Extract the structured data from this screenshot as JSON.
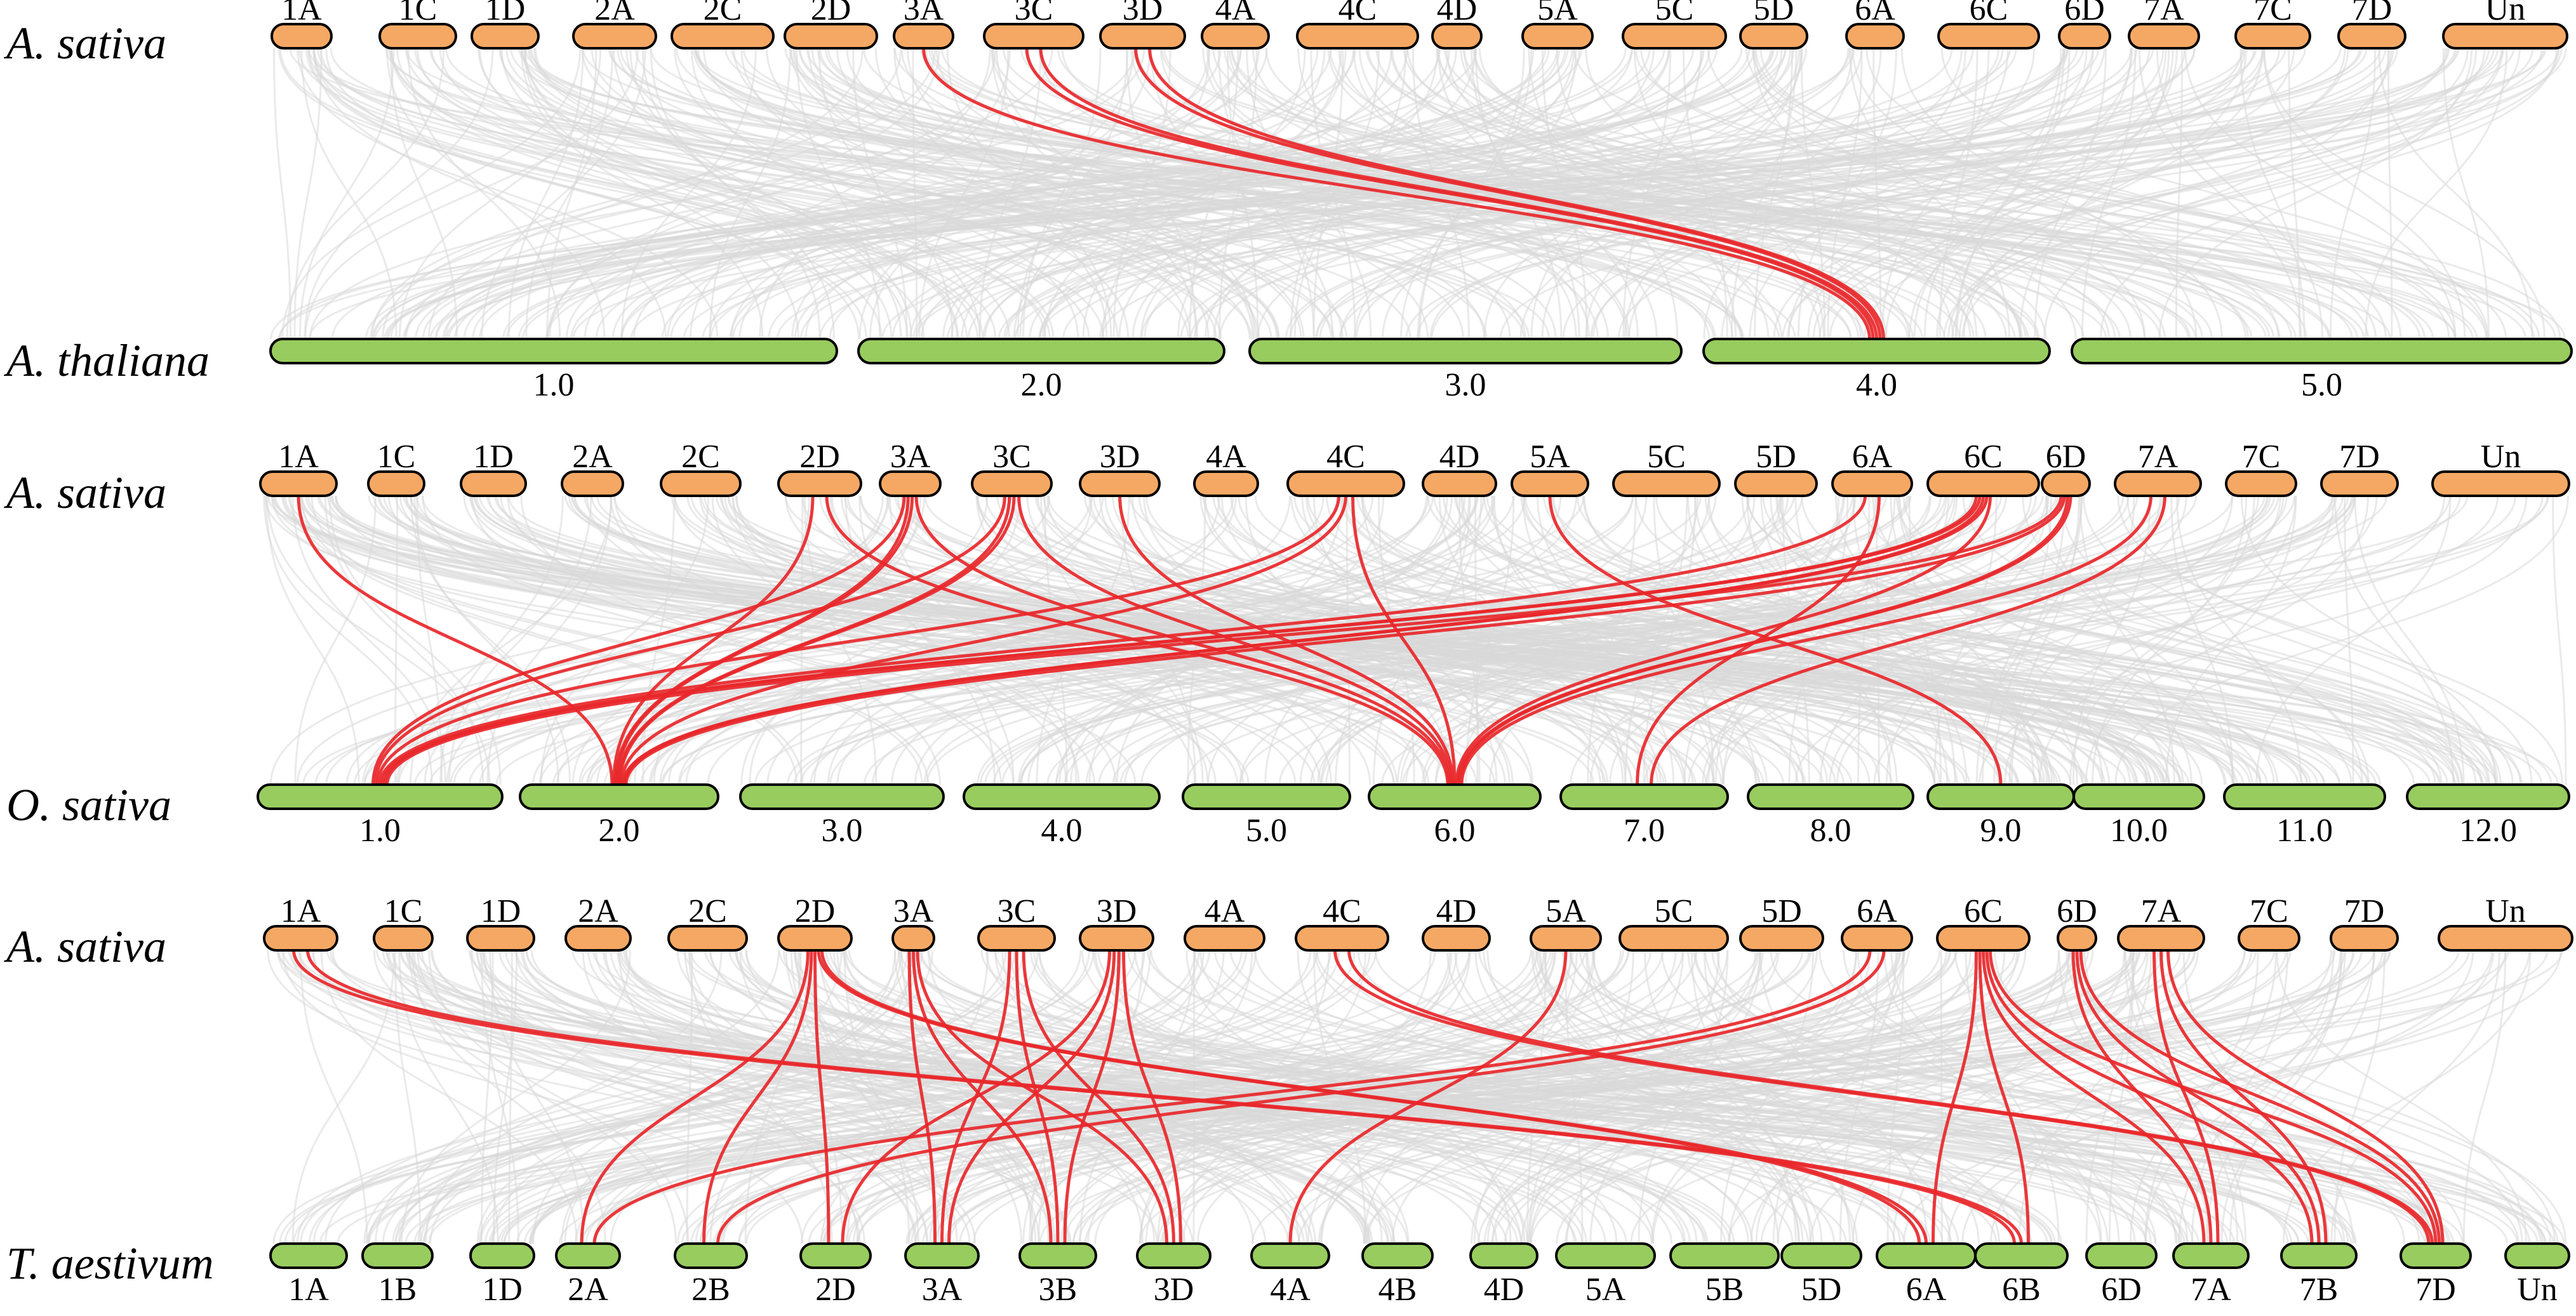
{
  "colors": {
    "top_track": "#f5a864",
    "bottom_track": "#98cc5e",
    "background_links": "#d9d9d9",
    "highlight_links": "#e8272a"
  },
  "panels": [
    {
      "top_species": "A. sativa",
      "bottom_species": "A. thaliana",
      "top_chromosomes": [
        "1A",
        "1C",
        "1D",
        "2A",
        "2C",
        "2D",
        "3A",
        "3C",
        "3D",
        "4A",
        "4C",
        "4D",
        "5A",
        "5C",
        "5D",
        "6A",
        "6C",
        "6D",
        "7A",
        "7C",
        "7D",
        "Un"
      ],
      "bottom_chromosomes": [
        "1.0",
        "2.0",
        "3.0",
        "4.0",
        "5.0"
      ],
      "highlight_links": [
        {
          "from": "3A",
          "to": "4.0"
        },
        {
          "from": "3C",
          "to": "4.0"
        },
        {
          "from": "3C",
          "to": "4.0"
        },
        {
          "from": "3D",
          "to": "4.0"
        },
        {
          "from": "3D",
          "to": "4.0"
        }
      ]
    },
    {
      "top_species": "A. sativa",
      "bottom_species": "O. sativa",
      "top_chromosomes": [
        "1A",
        "1C",
        "1D",
        "2A",
        "2C",
        "2D",
        "3A",
        "3C",
        "3D",
        "4A",
        "4C",
        "4D",
        "5A",
        "5C",
        "5D",
        "6A",
        "6C",
        "6D",
        "7A",
        "7C",
        "7D",
        "Un"
      ],
      "bottom_chromosomes": [
        "1.0",
        "2.0",
        "3.0",
        "4.0",
        "5.0",
        "6.0",
        "7.0",
        "8.0",
        "9.0",
        "10.0",
        "11.0",
        "12.0"
      ],
      "highlight_links": [
        {
          "from": "1A",
          "to": "2.0"
        },
        {
          "from": "2D",
          "to": "2.0"
        },
        {
          "from": "2D",
          "to": "6.0"
        },
        {
          "from": "3A",
          "to": "1.0"
        },
        {
          "from": "3A",
          "to": "2.0"
        },
        {
          "from": "3A",
          "to": "2.0"
        },
        {
          "from": "3A",
          "to": "6.0"
        },
        {
          "from": "3C",
          "to": "1.0"
        },
        {
          "from": "3C",
          "to": "2.0"
        },
        {
          "from": "3C",
          "to": "2.0"
        },
        {
          "from": "3C",
          "to": "6.0"
        },
        {
          "from": "3D",
          "to": "6.0"
        },
        {
          "from": "4C",
          "to": "1.0"
        },
        {
          "from": "4C",
          "to": "2.0"
        },
        {
          "from": "4C",
          "to": "6.0"
        },
        {
          "from": "5A",
          "to": "9.0"
        },
        {
          "from": "6A",
          "to": "1.0"
        },
        {
          "from": "6A",
          "to": "7.0"
        },
        {
          "from": "6C",
          "to": "1.0"
        },
        {
          "from": "6C",
          "to": "1.0"
        },
        {
          "from": "6C",
          "to": "2.0"
        },
        {
          "from": "6C",
          "to": "2.0"
        },
        {
          "from": "6C",
          "to": "6.0"
        },
        {
          "from": "6D",
          "to": "1.0"
        },
        {
          "from": "6D",
          "to": "2.0"
        },
        {
          "from": "6D",
          "to": "6.0"
        },
        {
          "from": "6D",
          "to": "6.0"
        },
        {
          "from": "7A",
          "to": "6.0"
        },
        {
          "from": "7A",
          "to": "7.0"
        }
      ]
    },
    {
      "top_species": "A. sativa",
      "bottom_species": "T. aestivum",
      "top_chromosomes": [
        "1A",
        "1C",
        "1D",
        "2A",
        "2C",
        "2D",
        "3A",
        "3C",
        "3D",
        "4A",
        "4C",
        "4D",
        "5A",
        "5C",
        "5D",
        "6A",
        "6C",
        "6D",
        "7A",
        "7C",
        "7D",
        "Un"
      ],
      "bottom_chromosomes": [
        "1A",
        "1B",
        "1D",
        "2A",
        "2B",
        "2D",
        "3A",
        "3B",
        "3D",
        "4A",
        "4B",
        "4D",
        "5A",
        "5B",
        "5D",
        "6A",
        "6B",
        "6D",
        "7A",
        "7B",
        "7D",
        "Un"
      ],
      "highlight_links": [
        {
          "from": "1A",
          "to": "6B"
        },
        {
          "from": "1A",
          "to": "6B"
        },
        {
          "from": "2D",
          "to": "2A"
        },
        {
          "from": "2D",
          "to": "2B"
        },
        {
          "from": "2D",
          "to": "2D"
        },
        {
          "from": "2D",
          "to": "6A"
        },
        {
          "from": "2D",
          "to": "6A"
        },
        {
          "from": "3A",
          "to": "3A"
        },
        {
          "from": "3A",
          "to": "3B"
        },
        {
          "from": "3A",
          "to": "3D"
        },
        {
          "from": "3C",
          "to": "3A"
        },
        {
          "from": "3C",
          "to": "3B"
        },
        {
          "from": "3C",
          "to": "3D"
        },
        {
          "from": "3D",
          "to": "2D"
        },
        {
          "from": "3D",
          "to": "3A"
        },
        {
          "from": "3D",
          "to": "3B"
        },
        {
          "from": "3D",
          "to": "3D"
        },
        {
          "from": "4C",
          "to": "7D"
        },
        {
          "from": "4C",
          "to": "7D"
        },
        {
          "from": "5A",
          "to": "4A"
        },
        {
          "from": "6A",
          "to": "2A"
        },
        {
          "from": "6A",
          "to": "2B"
        },
        {
          "from": "6C",
          "to": "6A"
        },
        {
          "from": "6C",
          "to": "6B"
        },
        {
          "from": "6C",
          "to": "7A"
        },
        {
          "from": "6C",
          "to": "7B"
        },
        {
          "from": "6C",
          "to": "7D"
        },
        {
          "from": "6D",
          "to": "7A"
        },
        {
          "from": "6D",
          "to": "7B"
        },
        {
          "from": "6D",
          "to": "7D"
        },
        {
          "from": "7A",
          "to": "7A"
        },
        {
          "from": "7A",
          "to": "7B"
        },
        {
          "from": "7A",
          "to": "7D"
        }
      ]
    }
  ]
}
